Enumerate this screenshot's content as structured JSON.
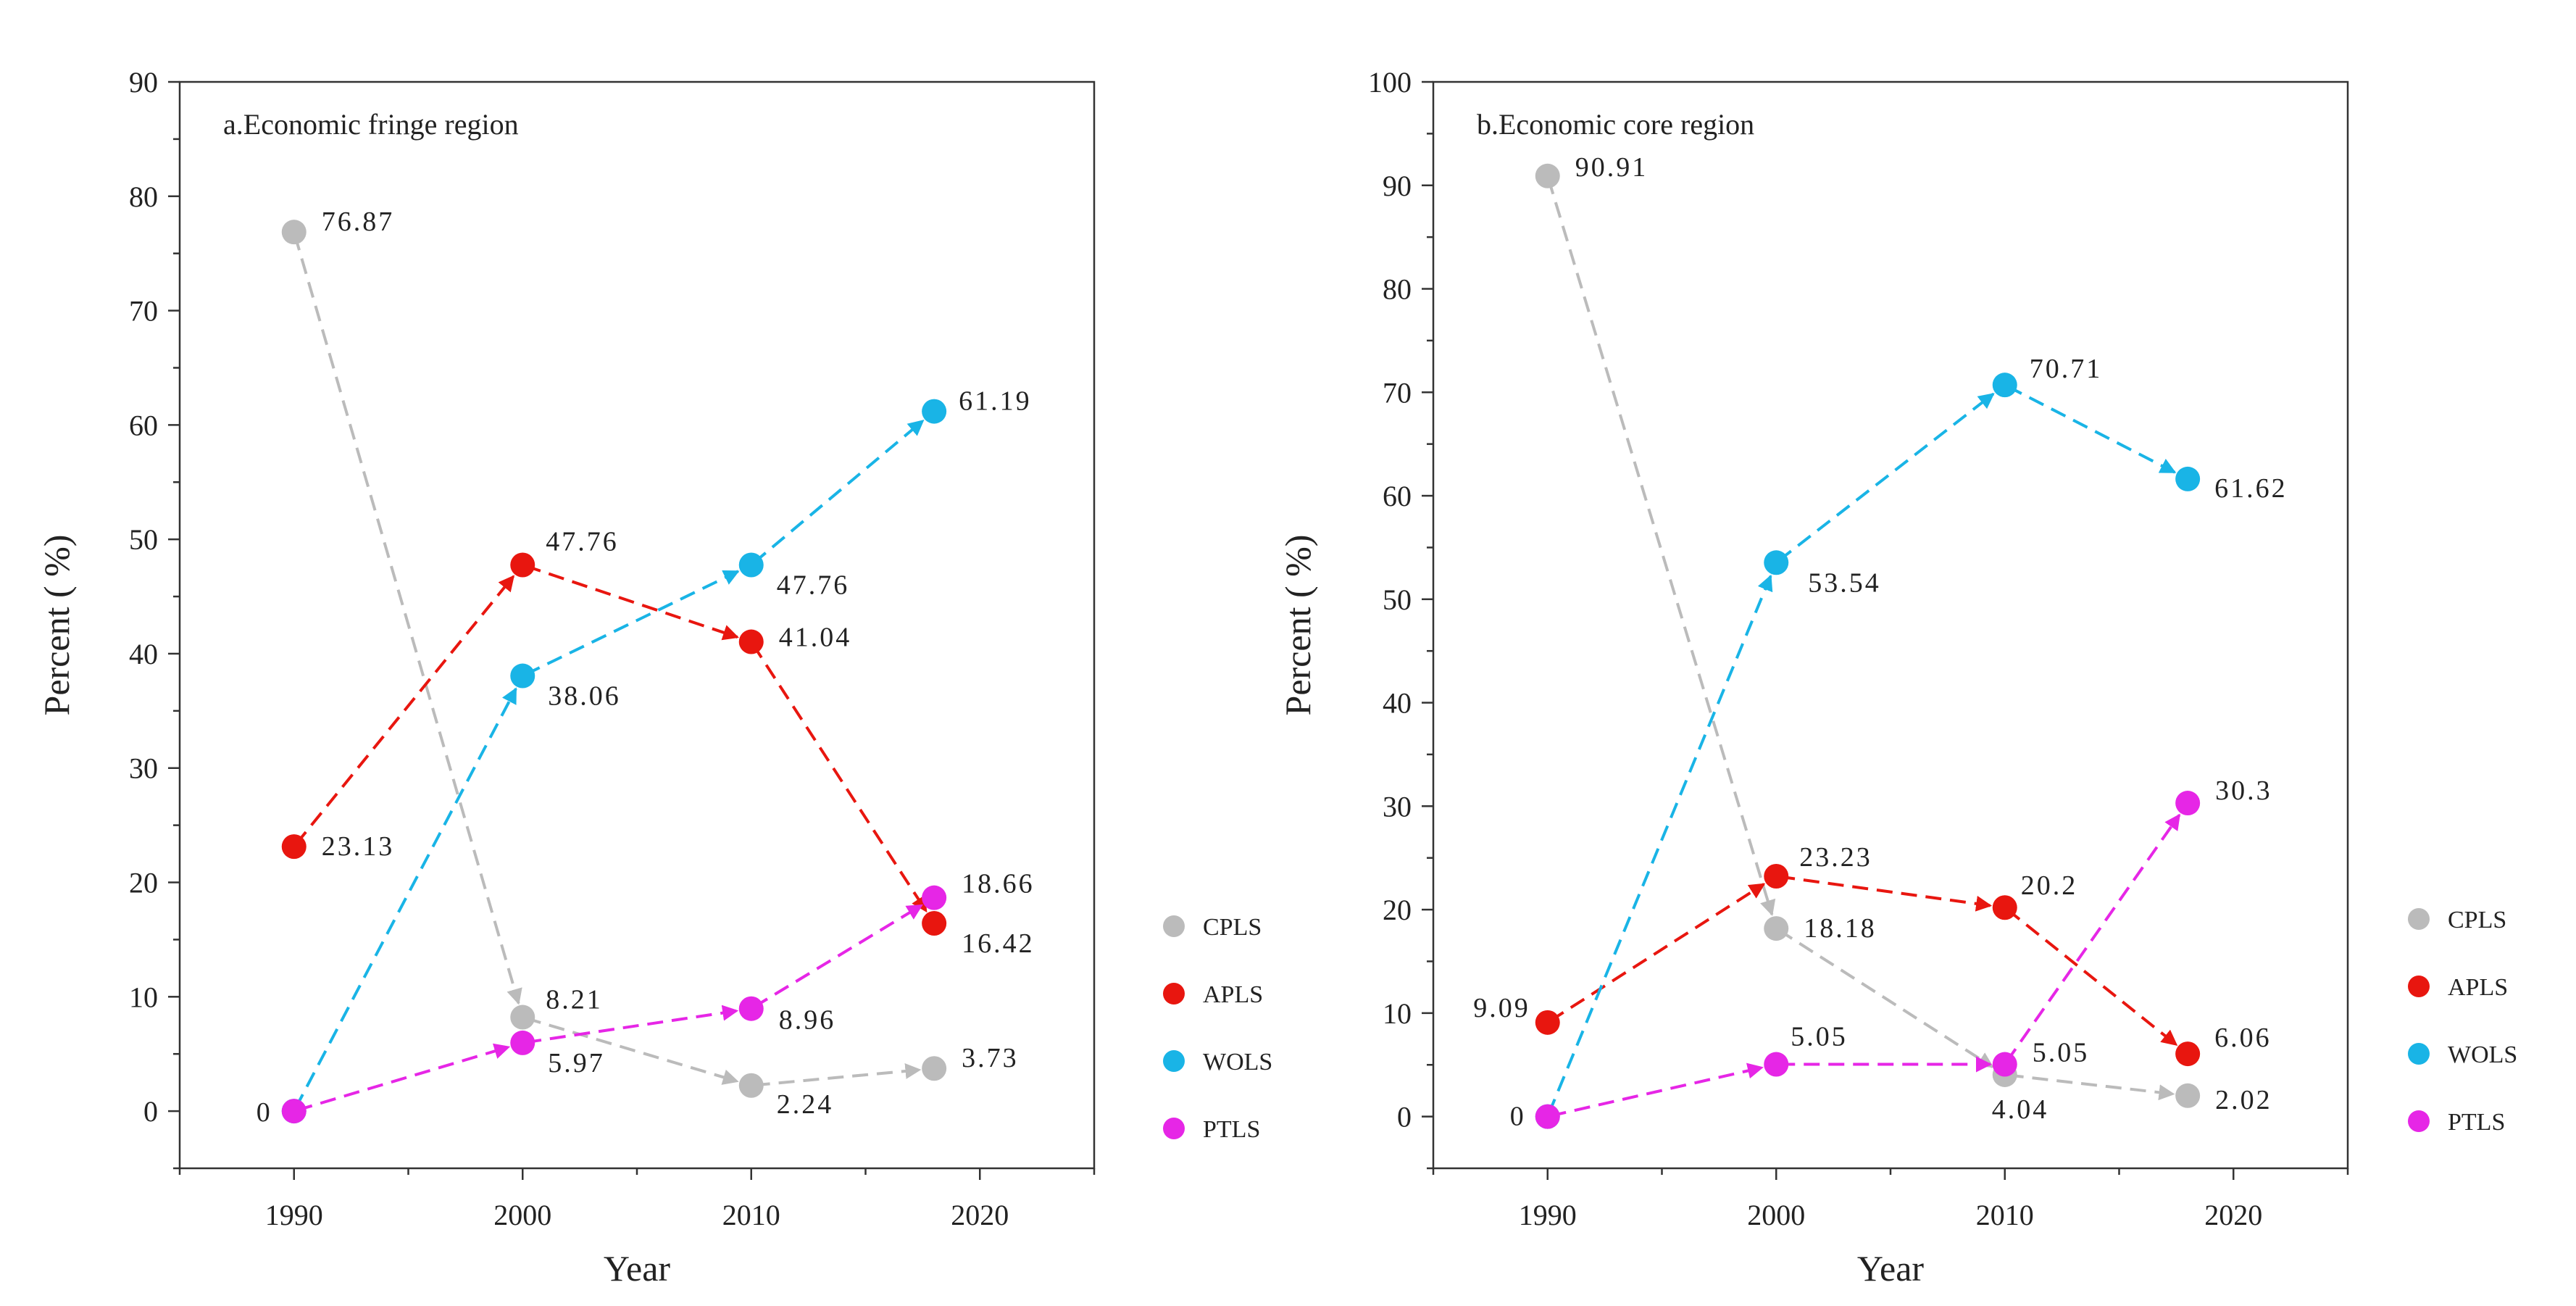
{
  "chart_data": [
    {
      "type": "line",
      "title": "a.Economic fringe region",
      "xlabel": "Year",
      "ylabel": "Percent ( %)",
      "xlim": [
        1985,
        2025
      ],
      "ylim": [
        -5,
        90
      ],
      "xticks": [
        1990,
        2000,
        2010,
        2020
      ],
      "yticks": [
        0,
        10,
        20,
        30,
        40,
        50,
        60,
        70,
        80,
        90
      ],
      "grid": false,
      "legend_position": "right",
      "x": [
        1990,
        2000,
        2010,
        2018
      ],
      "series": [
        {
          "name": "CPLS",
          "color": "#bbbbbb",
          "values": [
            76.87,
            8.21,
            2.24,
            3.73
          ],
          "labels": [
            "76.87",
            "8.21",
            "2.24",
            "3.73"
          ]
        },
        {
          "name": "APLS",
          "color": "#e8160f",
          "values": [
            23.13,
            47.76,
            41.04,
            16.42
          ],
          "labels": [
            "23.13",
            "47.76",
            "41.04",
            "16.42"
          ]
        },
        {
          "name": "WOLS",
          "color": "#19b4e6",
          "values": [
            0,
            38.06,
            47.76,
            61.19
          ],
          "labels": [
            "0",
            "38.06",
            "47.76",
            "61.19"
          ]
        },
        {
          "name": "PTLS",
          "color": "#e626e6",
          "values": [
            0,
            5.97,
            8.96,
            18.66
          ],
          "labels": [
            "",
            "5.97",
            "8.96",
            "18.66"
          ]
        }
      ]
    },
    {
      "type": "line",
      "title": "b.Economic core region",
      "xlabel": "Year",
      "ylabel": "Percent ( %)",
      "xlim": [
        1985,
        2025
      ],
      "ylim": [
        -5,
        100
      ],
      "xticks": [
        1990,
        2000,
        2010,
        2020
      ],
      "yticks": [
        0,
        10,
        20,
        30,
        40,
        50,
        60,
        70,
        80,
        90,
        100
      ],
      "grid": false,
      "legend_position": "right",
      "x": [
        1990,
        2000,
        2010,
        2018
      ],
      "series": [
        {
          "name": "CPLS",
          "color": "#bbbbbb",
          "values": [
            90.91,
            18.18,
            4.04,
            2.02
          ],
          "labels": [
            "90.91",
            "18.18",
            "4.04",
            "2.02"
          ]
        },
        {
          "name": "APLS",
          "color": "#e8160f",
          "values": [
            9.09,
            23.23,
            20.2,
            6.06
          ],
          "labels": [
            "9.09",
            "23.23",
            "20.2",
            "6.06"
          ]
        },
        {
          "name": "WOLS",
          "color": "#19b4e6",
          "values": [
            0,
            53.54,
            70.71,
            61.62
          ],
          "labels": [
            "0",
            "53.54",
            "70.71",
            "61.62"
          ]
        },
        {
          "name": "PTLS",
          "color": "#e626e6",
          "values": [
            0,
            5.05,
            5.05,
            30.3
          ],
          "labels": [
            "",
            "5.05",
            "5.05",
            "30.3"
          ]
        }
      ]
    }
  ]
}
